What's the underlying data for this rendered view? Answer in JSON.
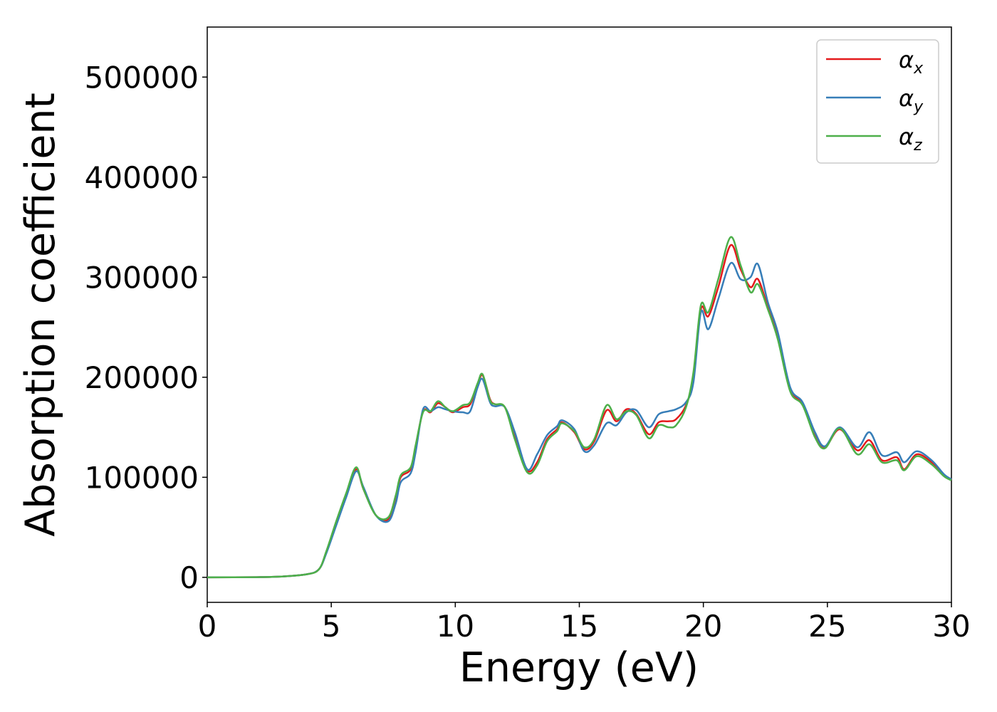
{
  "chart_data": {
    "type": "line",
    "title": "",
    "xlabel": "Energy (eV)",
    "ylabel": "Absorption coefficient",
    "xlim": [
      0,
      30
    ],
    "ylim": [
      -25000,
      550000
    ],
    "xticks": [
      0,
      5,
      10,
      15,
      20,
      25,
      30
    ],
    "xtick_labels": [
      "0",
      "5",
      "10",
      "15",
      "20",
      "25",
      "30"
    ],
    "yticks": [
      0,
      100000,
      200000,
      300000,
      400000,
      500000
    ],
    "ytick_labels": [
      "0",
      "100000",
      "200000",
      "300000",
      "400000",
      "500000"
    ],
    "grid": false,
    "legend_position": "top-right",
    "series": [
      {
        "name": "α_x",
        "label_main": "α",
        "label_sub": "x",
        "color": "#e41a1c",
        "points": [
          [
            0,
            0
          ],
          [
            2,
            200
          ],
          [
            3,
            800
          ],
          [
            4,
            3000
          ],
          [
            4.5,
            8000
          ],
          [
            4.8,
            25000
          ],
          [
            5.2,
            55000
          ],
          [
            5.6,
            82000
          ],
          [
            6,
            108000
          ],
          [
            6.3,
            88000
          ],
          [
            6.8,
            62000
          ],
          [
            7.3,
            58000
          ],
          [
            7.6,
            80000
          ],
          [
            7.8,
            100000
          ],
          [
            8.2,
            108000
          ],
          [
            8.4,
            130000
          ],
          [
            8.7,
            166000
          ],
          [
            9,
            165000
          ],
          [
            9.3,
            174000
          ],
          [
            9.6,
            170000
          ],
          [
            9.9,
            165000
          ],
          [
            10.3,
            170000
          ],
          [
            10.6,
            173000
          ],
          [
            10.9,
            192000
          ],
          [
            11.1,
            202000
          ],
          [
            11.4,
            178000
          ],
          [
            11.6,
            173000
          ],
          [
            12,
            170000
          ],
          [
            12.4,
            140000
          ],
          [
            12.9,
            107000
          ],
          [
            13.3,
            115000
          ],
          [
            13.7,
            138000
          ],
          [
            14.1,
            148000
          ],
          [
            14.3,
            155000
          ],
          [
            14.8,
            145000
          ],
          [
            15.2,
            128000
          ],
          [
            15.6,
            136000
          ],
          [
            16.1,
            167000
          ],
          [
            16.5,
            156000
          ],
          [
            16.9,
            168000
          ],
          [
            17.3,
            163000
          ],
          [
            17.8,
            143000
          ],
          [
            18.2,
            155000
          ],
          [
            18.6,
            156000
          ],
          [
            18.9,
            158000
          ],
          [
            19.3,
            172000
          ],
          [
            19.6,
            200000
          ],
          [
            19.9,
            268000
          ],
          [
            20.2,
            261000
          ],
          [
            20.6,
            290000
          ],
          [
            21.1,
            332000
          ],
          [
            21.5,
            308000
          ],
          [
            21.9,
            290000
          ],
          [
            22.2,
            298000
          ],
          [
            22.6,
            270000
          ],
          [
            23,
            240000
          ],
          [
            23.5,
            188000
          ],
          [
            24,
            173000
          ],
          [
            24.5,
            142000
          ],
          [
            24.9,
            130000
          ],
          [
            25.5,
            148000
          ],
          [
            26.2,
            127000
          ],
          [
            26.7,
            137000
          ],
          [
            27.2,
            117000
          ],
          [
            27.8,
            120000
          ],
          [
            28.1,
            108000
          ],
          [
            28.6,
            123000
          ],
          [
            29.2,
            115000
          ],
          [
            29.7,
            102000
          ],
          [
            30,
            98000
          ]
        ]
      },
      {
        "name": "α_y",
        "label_main": "α",
        "label_sub": "y",
        "color": "#377eb8",
        "points": [
          [
            0,
            0
          ],
          [
            2,
            200
          ],
          [
            3,
            800
          ],
          [
            4,
            3000
          ],
          [
            4.5,
            8000
          ],
          [
            4.8,
            24000
          ],
          [
            5.2,
            52000
          ],
          [
            5.6,
            80000
          ],
          [
            6,
            106000
          ],
          [
            6.3,
            90000
          ],
          [
            6.8,
            62000
          ],
          [
            7.3,
            56000
          ],
          [
            7.6,
            74000
          ],
          [
            7.8,
            95000
          ],
          [
            8.2,
            104000
          ],
          [
            8.4,
            125000
          ],
          [
            8.7,
            168000
          ],
          [
            9,
            166000
          ],
          [
            9.3,
            170000
          ],
          [
            9.6,
            168000
          ],
          [
            9.9,
            166000
          ],
          [
            10.3,
            165000
          ],
          [
            10.6,
            166000
          ],
          [
            10.9,
            190000
          ],
          [
            11.1,
            198000
          ],
          [
            11.4,
            175000
          ],
          [
            11.6,
            171000
          ],
          [
            12,
            170000
          ],
          [
            12.4,
            145000
          ],
          [
            12.9,
            108000
          ],
          [
            13.3,
            123000
          ],
          [
            13.7,
            142000
          ],
          [
            14.1,
            151000
          ],
          [
            14.3,
            157000
          ],
          [
            14.8,
            148000
          ],
          [
            15.2,
            126000
          ],
          [
            15.6,
            132000
          ],
          [
            16.1,
            154000
          ],
          [
            16.5,
            152000
          ],
          [
            16.9,
            165000
          ],
          [
            17.3,
            167000
          ],
          [
            17.8,
            150000
          ],
          [
            18.2,
            163000
          ],
          [
            18.6,
            166000
          ],
          [
            18.9,
            168000
          ],
          [
            19.3,
            175000
          ],
          [
            19.6,
            195000
          ],
          [
            19.9,
            265000
          ],
          [
            20.2,
            248000
          ],
          [
            20.6,
            278000
          ],
          [
            21.1,
            314000
          ],
          [
            21.5,
            298000
          ],
          [
            21.9,
            300000
          ],
          [
            22.2,
            313000
          ],
          [
            22.6,
            275000
          ],
          [
            23,
            245000
          ],
          [
            23.5,
            190000
          ],
          [
            24,
            175000
          ],
          [
            24.5,
            145000
          ],
          [
            24.9,
            131000
          ],
          [
            25.5,
            150000
          ],
          [
            26.2,
            130000
          ],
          [
            26.7,
            145000
          ],
          [
            27.2,
            122000
          ],
          [
            27.8,
            125000
          ],
          [
            28.1,
            115000
          ],
          [
            28.6,
            126000
          ],
          [
            29.2,
            117000
          ],
          [
            29.7,
            103000
          ],
          [
            30,
            98000
          ]
        ]
      },
      {
        "name": "α_z",
        "label_main": "α",
        "label_sub": "z",
        "color": "#4daf4a",
        "points": [
          [
            0,
            0
          ],
          [
            2,
            200
          ],
          [
            3,
            800
          ],
          [
            4,
            3000
          ],
          [
            4.5,
            8000
          ],
          [
            4.8,
            26000
          ],
          [
            5.2,
            56000
          ],
          [
            5.6,
            84000
          ],
          [
            6,
            110000
          ],
          [
            6.3,
            88000
          ],
          [
            6.8,
            62000
          ],
          [
            7.3,
            60000
          ],
          [
            7.6,
            82000
          ],
          [
            7.8,
            102000
          ],
          [
            8.2,
            110000
          ],
          [
            8.4,
            132000
          ],
          [
            8.7,
            165000
          ],
          [
            9,
            166000
          ],
          [
            9.3,
            176000
          ],
          [
            9.6,
            170000
          ],
          [
            9.9,
            166000
          ],
          [
            10.3,
            172000
          ],
          [
            10.6,
            175000
          ],
          [
            10.9,
            194000
          ],
          [
            11.1,
            203000
          ],
          [
            11.4,
            177000
          ],
          [
            11.6,
            173000
          ],
          [
            12,
            170000
          ],
          [
            12.4,
            138000
          ],
          [
            12.9,
            105000
          ],
          [
            13.3,
            112000
          ],
          [
            13.7,
            136000
          ],
          [
            14.1,
            146000
          ],
          [
            14.3,
            154000
          ],
          [
            14.8,
            146000
          ],
          [
            15.2,
            130000
          ],
          [
            15.6,
            138000
          ],
          [
            16.1,
            172000
          ],
          [
            16.5,
            158000
          ],
          [
            16.9,
            166000
          ],
          [
            17.3,
            162000
          ],
          [
            17.8,
            139000
          ],
          [
            18.2,
            152000
          ],
          [
            18.6,
            150000
          ],
          [
            18.9,
            152000
          ],
          [
            19.3,
            170000
          ],
          [
            19.6,
            205000
          ],
          [
            19.9,
            272000
          ],
          [
            20.2,
            265000
          ],
          [
            20.6,
            298000
          ],
          [
            21.1,
            340000
          ],
          [
            21.5,
            312000
          ],
          [
            21.9,
            285000
          ],
          [
            22.2,
            293000
          ],
          [
            22.6,
            268000
          ],
          [
            23,
            238000
          ],
          [
            23.5,
            186000
          ],
          [
            24,
            172000
          ],
          [
            24.5,
            140000
          ],
          [
            24.9,
            129000
          ],
          [
            25.5,
            149000
          ],
          [
            26.2,
            123000
          ],
          [
            26.7,
            133000
          ],
          [
            27.2,
            115000
          ],
          [
            27.8,
            117000
          ],
          [
            28.1,
            107000
          ],
          [
            28.6,
            121000
          ],
          [
            29.2,
            113000
          ],
          [
            29.7,
            101000
          ],
          [
            30,
            97000
          ]
        ]
      }
    ]
  }
}
